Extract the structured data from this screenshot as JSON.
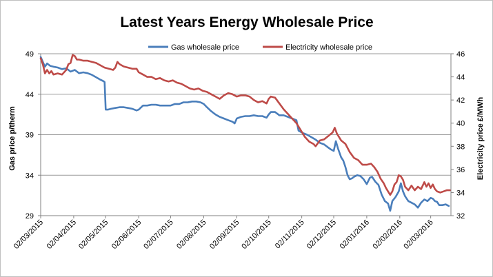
{
  "chart_data": {
    "type": "line",
    "title": "Latest Years Energy Wholesale Price",
    "ylabel_left": "Gas price p/therm",
    "ylabel_right": "Electricity price £/MWh",
    "ylim_left": [
      29,
      49
    ],
    "yticks_left": [
      29,
      34,
      39,
      44,
      49
    ],
    "ylim_right": [
      32,
      46
    ],
    "yticks_right": [
      32,
      34,
      36,
      38,
      40,
      42,
      44,
      46
    ],
    "legend_position": "top-center",
    "grid": "horizontal",
    "x_tick_labels": [
      "02/03/2015",
      "02/04/2015",
      "02/05/2015",
      "02/06/2015",
      "02/07/2015",
      "02/08/2015",
      "02/09/2015",
      "02/10/2015",
      "02/11/2015",
      "02/12/2015",
      "02/01/2016",
      "02/02/2016",
      "02/03/2016"
    ],
    "x_range_days": [
      0,
      385
    ],
    "x_tick_days": [
      0,
      31,
      61,
      92,
      122,
      153,
      184,
      214,
      245,
      275,
      306,
      337,
      366
    ],
    "series": [
      {
        "name": "Gas wholesale price",
        "axis": "left",
        "color": "#4a7ebb",
        "points": [
          [
            0,
            48.6
          ],
          [
            2,
            48.0
          ],
          [
            4,
            47.4
          ],
          [
            6,
            47.8
          ],
          [
            9,
            47.5
          ],
          [
            12,
            47.4
          ],
          [
            16,
            47.3
          ],
          [
            20,
            47.1
          ],
          [
            24,
            47.2
          ],
          [
            28,
            46.8
          ],
          [
            32,
            47.0
          ],
          [
            36,
            46.6
          ],
          [
            40,
            46.7
          ],
          [
            44,
            46.6
          ],
          [
            48,
            46.4
          ],
          [
            52,
            46.1
          ],
          [
            56,
            45.8
          ],
          [
            59,
            45.6
          ],
          [
            60,
            45.5
          ],
          [
            61,
            42.1
          ],
          [
            63,
            42.1
          ],
          [
            66,
            42.2
          ],
          [
            70,
            42.3
          ],
          [
            74,
            42.4
          ],
          [
            78,
            42.4
          ],
          [
            82,
            42.3
          ],
          [
            86,
            42.2
          ],
          [
            90,
            42.0
          ],
          [
            92,
            42.1
          ],
          [
            96,
            42.6
          ],
          [
            100,
            42.6
          ],
          [
            104,
            42.7
          ],
          [
            108,
            42.7
          ],
          [
            112,
            42.6
          ],
          [
            116,
            42.6
          ],
          [
            120,
            42.6
          ],
          [
            122,
            42.6
          ],
          [
            126,
            42.8
          ],
          [
            130,
            42.8
          ],
          [
            134,
            43.0
          ],
          [
            138,
            43.0
          ],
          [
            142,
            43.1
          ],
          [
            146,
            43.1
          ],
          [
            150,
            43.0
          ],
          [
            153,
            42.8
          ],
          [
            156,
            42.4
          ],
          [
            160,
            41.9
          ],
          [
            164,
            41.5
          ],
          [
            168,
            41.2
          ],
          [
            172,
            41.0
          ],
          [
            176,
            40.8
          ],
          [
            180,
            40.6
          ],
          [
            182,
            40.4
          ],
          [
            184,
            41.0
          ],
          [
            188,
            41.2
          ],
          [
            192,
            41.3
          ],
          [
            196,
            41.3
          ],
          [
            200,
            41.4
          ],
          [
            204,
            41.3
          ],
          [
            208,
            41.3
          ],
          [
            212,
            41.1
          ],
          [
            214,
            41.5
          ],
          [
            216,
            41.8
          ],
          [
            220,
            41.8
          ],
          [
            224,
            41.4
          ],
          [
            228,
            41.4
          ],
          [
            232,
            41.2
          ],
          [
            236,
            41.0
          ],
          [
            240,
            40.8
          ],
          [
            242,
            39.5
          ],
          [
            246,
            39.2
          ],
          [
            250,
            39.0
          ],
          [
            254,
            38.7
          ],
          [
            258,
            38.4
          ],
          [
            262,
            38.0
          ],
          [
            266,
            37.8
          ],
          [
            270,
            37.4
          ],
          [
            272,
            37.2
          ],
          [
            275,
            37.0
          ],
          [
            277,
            38.2
          ],
          [
            279,
            37.3
          ],
          [
            282,
            36.2
          ],
          [
            284,
            35.8
          ],
          [
            286,
            35.0
          ],
          [
            288,
            34.0
          ],
          [
            290,
            33.5
          ],
          [
            292,
            33.6
          ],
          [
            294,
            33.8
          ],
          [
            297,
            34.0
          ],
          [
            300,
            33.9
          ],
          [
            303,
            33.5
          ],
          [
            306,
            32.9
          ],
          [
            309,
            33.7
          ],
          [
            311,
            33.8
          ],
          [
            314,
            33.2
          ],
          [
            317,
            32.8
          ],
          [
            320,
            31.6
          ],
          [
            323,
            30.8
          ],
          [
            326,
            30.5
          ],
          [
            328,
            29.6
          ],
          [
            330,
            30.8
          ],
          [
            333,
            31.3
          ],
          [
            336,
            32.0
          ],
          [
            338,
            33.0
          ],
          [
            340,
            32.0
          ],
          [
            342,
            31.4
          ],
          [
            345,
            30.8
          ],
          [
            348,
            30.6
          ],
          [
            351,
            30.4
          ],
          [
            354,
            30.0
          ],
          [
            357,
            30.6
          ],
          [
            360,
            31.0
          ],
          [
            363,
            30.8
          ],
          [
            366,
            31.2
          ],
          [
            368,
            31.1
          ],
          [
            370,
            30.8
          ],
          [
            372,
            30.7
          ],
          [
            374,
            30.3
          ],
          [
            377,
            30.3
          ],
          [
            380,
            30.4
          ],
          [
            383,
            30.2
          ]
        ]
      },
      {
        "name": "Electricity wholesale price",
        "axis": "right",
        "color": "#be4b48",
        "points": [
          [
            0,
            45.6
          ],
          [
            2,
            45.1
          ],
          [
            4,
            44.3
          ],
          [
            6,
            44.6
          ],
          [
            8,
            44.3
          ],
          [
            10,
            44.5
          ],
          [
            12,
            44.2
          ],
          [
            16,
            44.3
          ],
          [
            20,
            44.2
          ],
          [
            24,
            44.6
          ],
          [
            26,
            45.1
          ],
          [
            28,
            45.2
          ],
          [
            30,
            45.9
          ],
          [
            32,
            45.8
          ],
          [
            34,
            45.5
          ],
          [
            36,
            45.5
          ],
          [
            40,
            45.4
          ],
          [
            44,
            45.4
          ],
          [
            48,
            45.3
          ],
          [
            52,
            45.2
          ],
          [
            56,
            45.0
          ],
          [
            60,
            44.8
          ],
          [
            64,
            44.7
          ],
          [
            68,
            44.6
          ],
          [
            70,
            44.8
          ],
          [
            72,
            45.3
          ],
          [
            74,
            45.1
          ],
          [
            78,
            44.9
          ],
          [
            82,
            44.8
          ],
          [
            86,
            44.7
          ],
          [
            90,
            44.7
          ],
          [
            92,
            44.4
          ],
          [
            96,
            44.2
          ],
          [
            100,
            44.0
          ],
          [
            104,
            44.0
          ],
          [
            108,
            43.8
          ],
          [
            112,
            43.9
          ],
          [
            116,
            43.7
          ],
          [
            120,
            43.6
          ],
          [
            124,
            43.7
          ],
          [
            128,
            43.5
          ],
          [
            132,
            43.4
          ],
          [
            136,
            43.2
          ],
          [
            140,
            43.0
          ],
          [
            144,
            42.9
          ],
          [
            148,
            43.0
          ],
          [
            152,
            42.8
          ],
          [
            156,
            42.7
          ],
          [
            160,
            42.5
          ],
          [
            164,
            42.3
          ],
          [
            168,
            42.1
          ],
          [
            172,
            42.4
          ],
          [
            176,
            42.6
          ],
          [
            180,
            42.5
          ],
          [
            184,
            42.3
          ],
          [
            188,
            42.4
          ],
          [
            192,
            42.4
          ],
          [
            196,
            42.3
          ],
          [
            200,
            42.0
          ],
          [
            204,
            41.8
          ],
          [
            208,
            41.9
          ],
          [
            212,
            41.7
          ],
          [
            214,
            42.1
          ],
          [
            216,
            42.3
          ],
          [
            220,
            42.2
          ],
          [
            224,
            41.7
          ],
          [
            228,
            41.2
          ],
          [
            232,
            40.8
          ],
          [
            236,
            40.4
          ],
          [
            240,
            40.0
          ],
          [
            244,
            39.4
          ],
          [
            248,
            38.8
          ],
          [
            252,
            38.4
          ],
          [
            256,
            38.2
          ],
          [
            258,
            38.0
          ],
          [
            262,
            38.5
          ],
          [
            266,
            38.6
          ],
          [
            270,
            38.9
          ],
          [
            274,
            39.2
          ],
          [
            276,
            39.6
          ],
          [
            278,
            39.1
          ],
          [
            282,
            38.5
          ],
          [
            286,
            38.2
          ],
          [
            290,
            37.5
          ],
          [
            294,
            37.0
          ],
          [
            298,
            36.8
          ],
          [
            302,
            36.4
          ],
          [
            306,
            36.4
          ],
          [
            310,
            36.5
          ],
          [
            313,
            36.2
          ],
          [
            316,
            35.8
          ],
          [
            319,
            35.2
          ],
          [
            322,
            34.8
          ],
          [
            324,
            34.4
          ],
          [
            326,
            34.1
          ],
          [
            328,
            33.8
          ],
          [
            330,
            34.1
          ],
          [
            332,
            34.7
          ],
          [
            334,
            34.9
          ],
          [
            336,
            35.5
          ],
          [
            338,
            35.4
          ],
          [
            340,
            35.1
          ],
          [
            342,
            34.5
          ],
          [
            345,
            34.2
          ],
          [
            348,
            34.6
          ],
          [
            351,
            34.2
          ],
          [
            354,
            34.5
          ],
          [
            357,
            34.3
          ],
          [
            360,
            34.9
          ],
          [
            362,
            34.5
          ],
          [
            364,
            34.8
          ],
          [
            366,
            34.4
          ],
          [
            368,
            34.7
          ],
          [
            370,
            34.3
          ],
          [
            372,
            34.1
          ],
          [
            375,
            34.0
          ],
          [
            378,
            34.1
          ],
          [
            381,
            34.2
          ],
          [
            384,
            34.2
          ]
        ]
      }
    ]
  }
}
